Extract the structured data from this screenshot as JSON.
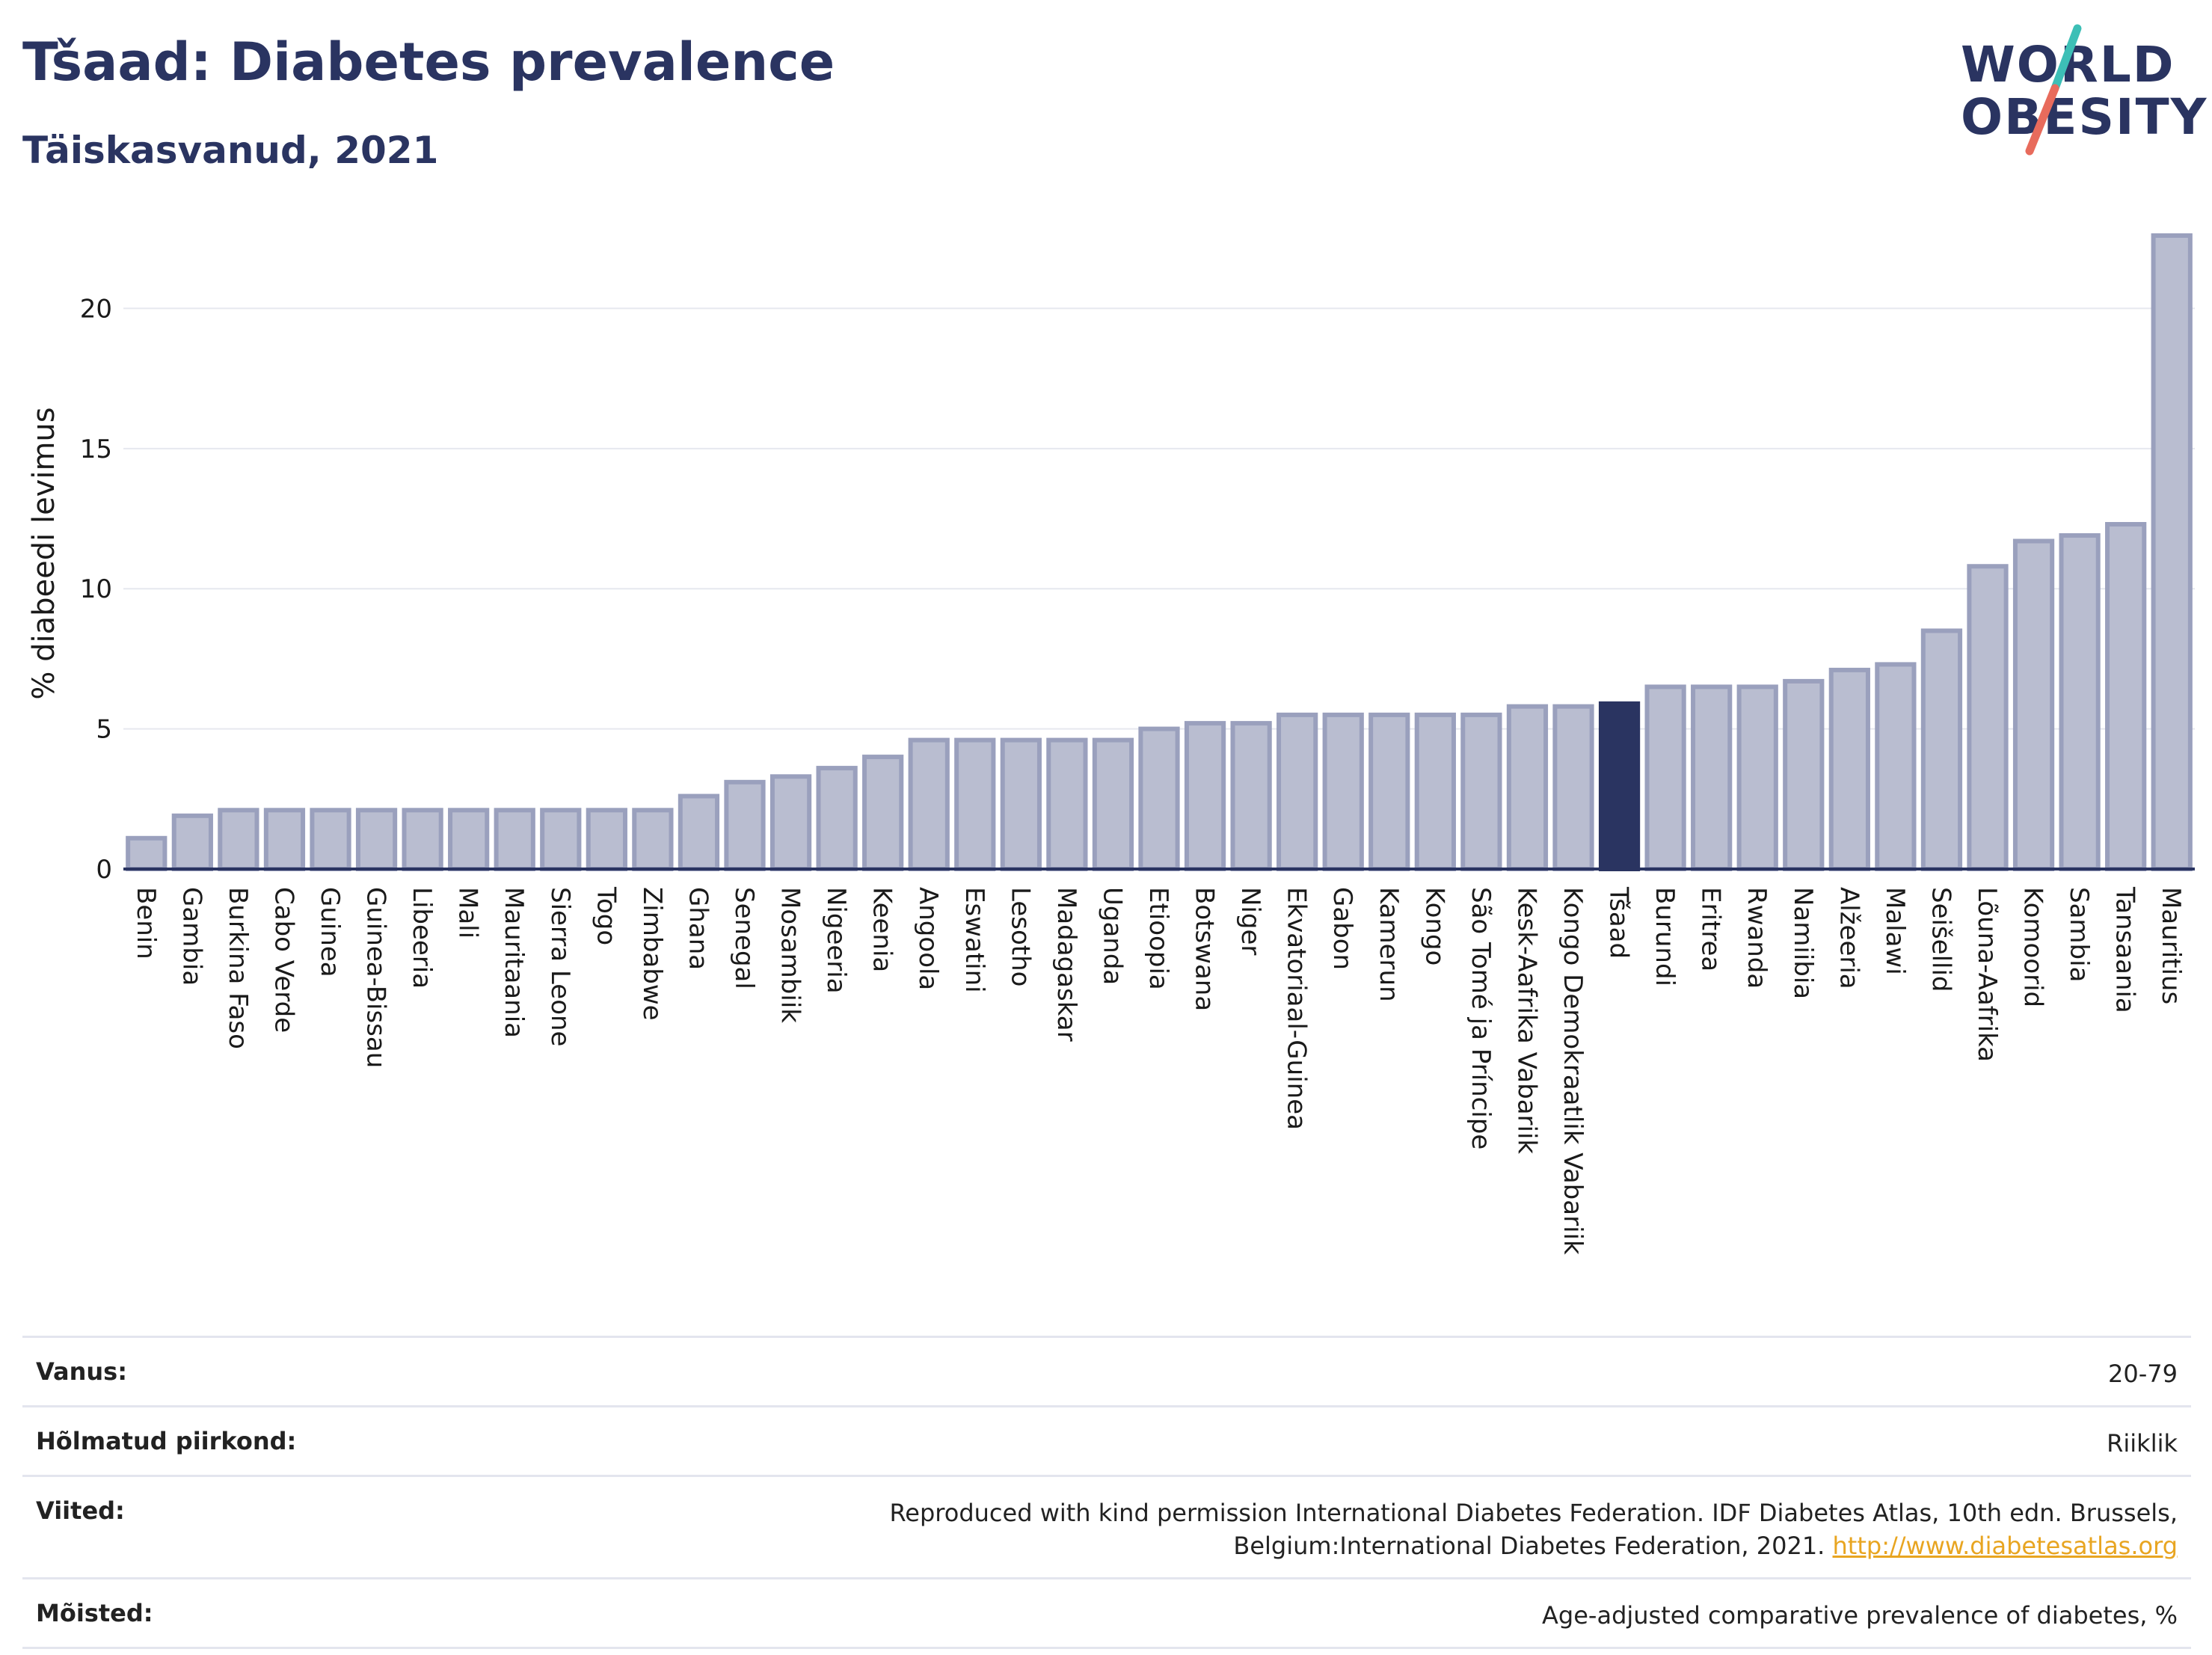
{
  "header": {
    "title": "Tšaad: Diabetes prevalence",
    "subtitle": "Täiskasvanud, 2021"
  },
  "logo": {
    "line1": "WORLD",
    "line2": "OBESITY",
    "accent_colors": [
      "#3dbfb6",
      "#e86b5c"
    ]
  },
  "chart_data": {
    "type": "bar",
    "ylabel": "% diabeedi levimus",
    "xlabel": "",
    "ylim": [
      0,
      23
    ],
    "yticks": [
      0,
      5,
      10,
      15,
      20
    ],
    "grid": true,
    "highlight": "Tšaad",
    "colors": {
      "bar": "#b9bdd0",
      "bar_border": "#9aa0bd",
      "highlight": "#2a3461"
    },
    "categories": [
      "Benin",
      "Gambia",
      "Burkina Faso",
      "Cabo Verde",
      "Guinea",
      "Guinea-Bissau",
      "Libeeria",
      "Mali",
      "Mauritaania",
      "Sierra Leone",
      "Togo",
      "Zimbabwe",
      "Ghana",
      "Senegal",
      "Mosambiik",
      "Nigeeria",
      "Keenia",
      "Angoola",
      "Eswatini",
      "Lesotho",
      "Madagaskar",
      "Uganda",
      "Etioopia",
      "Botswana",
      "Niger",
      "Ekvatoriaal-Guinea",
      "Gabon",
      "Kamerun",
      "Kongo",
      "São Tomé ja Príncipe",
      "Kesk-Aafrika Vabariik",
      "Kongo Demokraatlik Vabariik",
      "Tšaad",
      "Burundi",
      "Eritrea",
      "Rwanda",
      "Namiibia",
      "Alžeeria",
      "Malawi",
      "Seišellid",
      "Lõuna-Aafrika",
      "Komoorid",
      "Sambia",
      "Tansaania",
      "Mauritius"
    ],
    "values": [
      1.1,
      1.9,
      2.1,
      2.1,
      2.1,
      2.1,
      2.1,
      2.1,
      2.1,
      2.1,
      2.1,
      2.1,
      2.6,
      3.1,
      3.3,
      3.6,
      4.0,
      4.6,
      4.6,
      4.6,
      4.6,
      4.6,
      5.0,
      5.2,
      5.2,
      5.5,
      5.5,
      5.5,
      5.5,
      5.5,
      5.8,
      5.8,
      5.9,
      6.5,
      6.5,
      6.5,
      6.7,
      7.1,
      7.3,
      8.5,
      10.8,
      11.7,
      11.9,
      12.3,
      22.6
    ]
  },
  "meta": [
    {
      "label": "Vanus:",
      "value": "20-79"
    },
    {
      "label": "Hõlmatud piirkond:",
      "value": "Riiklik"
    },
    {
      "label": "Viited:",
      "value": "Reproduced with kind permission International Diabetes Federation.  IDF Diabetes Atlas, 10th edn. Brussels, Belgium:International Diabetes Federation, 2021.",
      "link": "http://www.diabetesatlas.org"
    },
    {
      "label": "Mõisted:",
      "value": "Age-adjusted comparative prevalence of diabetes, %"
    }
  ]
}
